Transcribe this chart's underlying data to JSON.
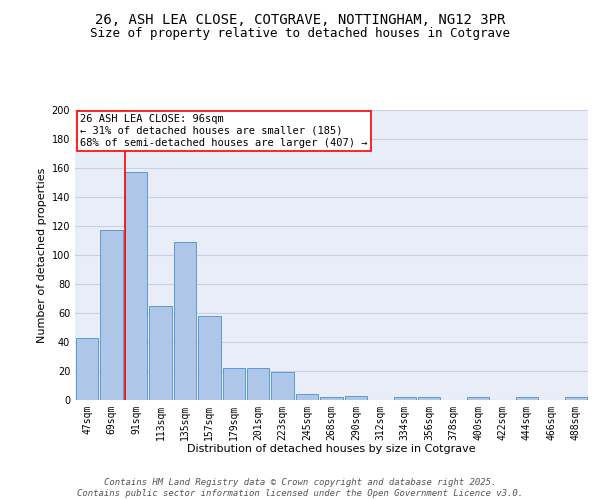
{
  "title_line1": "26, ASH LEA CLOSE, COTGRAVE, NOTTINGHAM, NG12 3PR",
  "title_line2": "Size of property relative to detached houses in Cotgrave",
  "xlabel": "Distribution of detached houses by size in Cotgrave",
  "ylabel": "Number of detached properties",
  "categories": [
    "47sqm",
    "69sqm",
    "91sqm",
    "113sqm",
    "135sqm",
    "157sqm",
    "179sqm",
    "201sqm",
    "223sqm",
    "245sqm",
    "268sqm",
    "290sqm",
    "312sqm",
    "334sqm",
    "356sqm",
    "378sqm",
    "400sqm",
    "422sqm",
    "444sqm",
    "466sqm",
    "488sqm"
  ],
  "values": [
    43,
    117,
    157,
    65,
    109,
    58,
    22,
    22,
    19,
    4,
    2,
    3,
    0,
    2,
    2,
    0,
    2,
    0,
    2,
    0,
    2
  ],
  "bar_color": "#aec6e8",
  "bar_edge_color": "#5b9bd5",
  "redline_index": 2,
  "annotation_text": "26 ASH LEA CLOSE: 96sqm\n← 31% of detached houses are smaller (185)\n68% of semi-detached houses are larger (407) →",
  "ylim": [
    0,
    200
  ],
  "yticks": [
    0,
    20,
    40,
    60,
    80,
    100,
    120,
    140,
    160,
    180,
    200
  ],
  "background_color": "#e8edf8",
  "grid_color": "#c8d0e8",
  "footer_text": "Contains HM Land Registry data © Crown copyright and database right 2025.\nContains public sector information licensed under the Open Government Licence v3.0.",
  "title_fontsize": 10,
  "subtitle_fontsize": 9,
  "axis_label_fontsize": 8,
  "tick_fontsize": 7,
  "annotation_fontsize": 7.5,
  "footer_fontsize": 6.5
}
